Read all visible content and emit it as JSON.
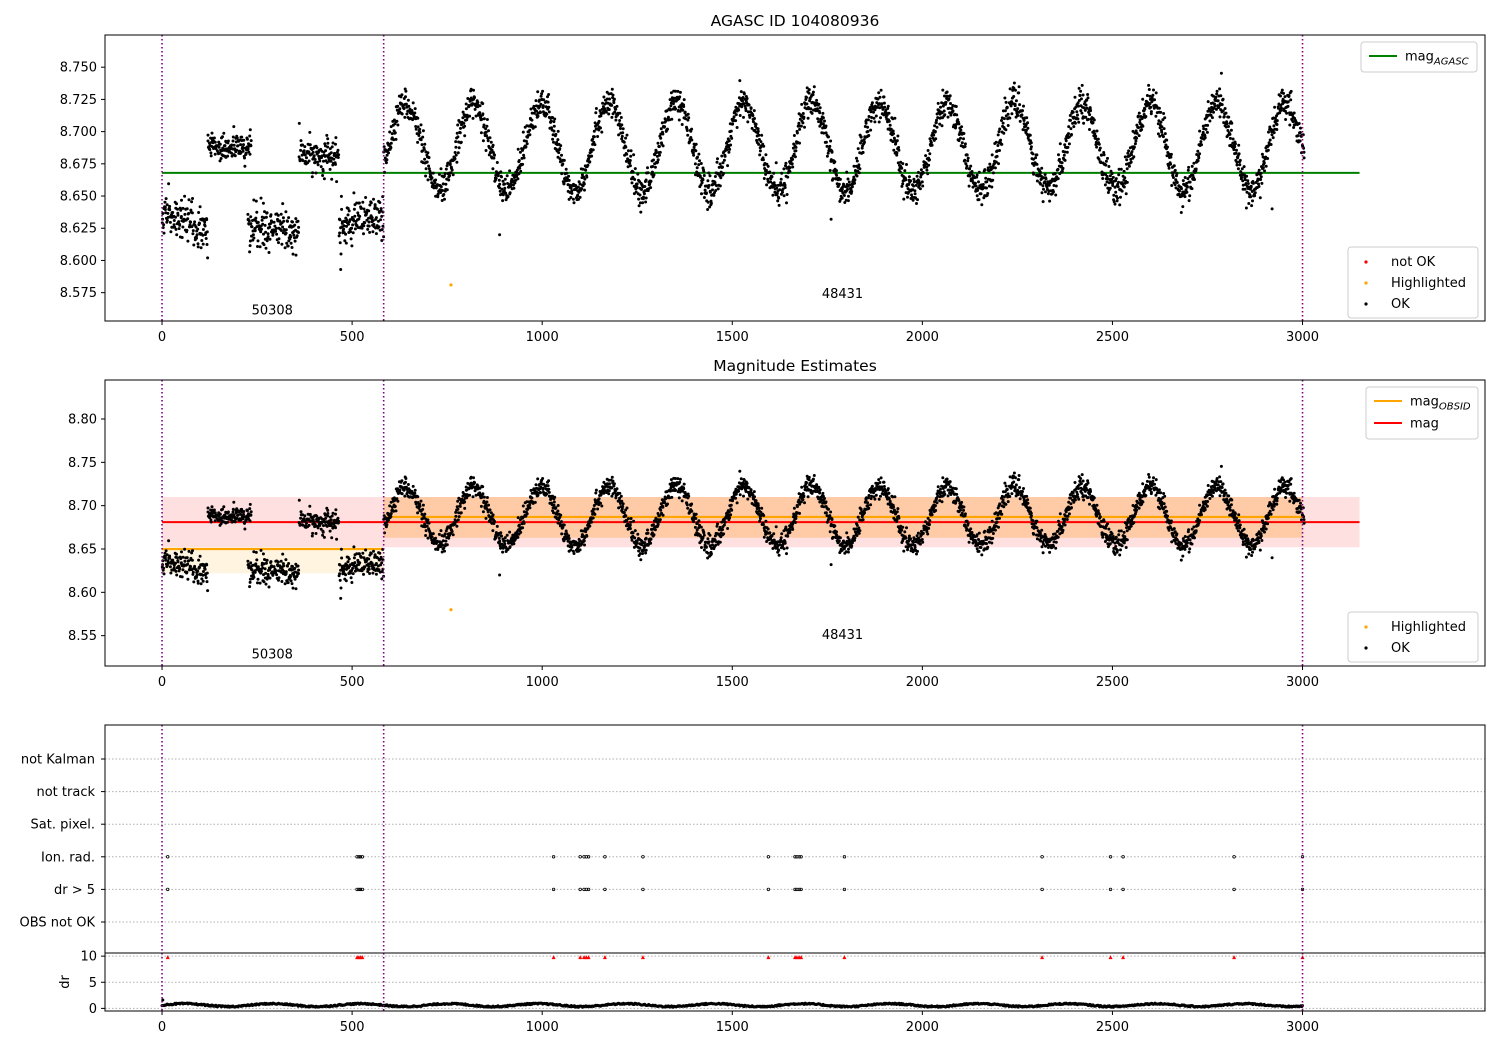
{
  "chart_data": [
    {
      "type": "scatter",
      "title": "AGASC ID 104080936",
      "xlim": [
        -150,
        3480
      ],
      "ylim": [
        8.553,
        8.775
      ],
      "x_ticks": [
        0,
        500,
        1000,
        1500,
        2000,
        2500,
        3000
      ],
      "y_ticks": [
        "8.575",
        "8.600",
        "8.625",
        "8.650",
        "8.675",
        "8.700",
        "8.725",
        "8.750"
      ],
      "obsid_boundaries": [
        0,
        583,
        3000
      ],
      "obsid_labels": [
        {
          "text": "50308",
          "x": 290,
          "y": 8.561
        },
        {
          "text": "48431",
          "x": 1790,
          "y": 8.574
        }
      ],
      "lines": [
        {
          "name": "mag_AGASC",
          "y": 8.668,
          "x_range": [
            0,
            3150
          ],
          "color": "#008000"
        }
      ],
      "legend_upper": [
        {
          "label": "mag",
          "subscript": "AGASC",
          "color": "#008000",
          "marker": "line"
        }
      ],
      "legend_lower": [
        {
          "label": "not OK",
          "color": "#ff0000",
          "marker": "dot"
        },
        {
          "label": "Highlighted",
          "color": "#ffa500",
          "marker": "dot"
        },
        {
          "label": "OK",
          "color": "#000000",
          "marker": "dot"
        }
      ],
      "series": [
        {
          "name": "OK",
          "color": "#000000",
          "description": "per-observation magnitude points, ~3000 samples",
          "segments": [
            {
              "x": [
                0,
                120
              ],
              "center": 8.638,
              "trend": -0.016,
              "noise": 0.008
            },
            {
              "x": [
                120,
                235
              ],
              "center": 8.688,
              "trend": 0.0,
              "noise": 0.006
            },
            {
              "x": [
                225,
                360
              ],
              "center": 8.628,
              "trend": -0.008,
              "noise": 0.008
            },
            {
              "x": [
                360,
                465
              ],
              "center": 8.683,
              "trend": -0.004,
              "noise": 0.007
            },
            {
              "x": [
                465,
                583
              ],
              "center": 8.626,
              "trend": 0.008,
              "noise": 0.008
            },
            {
              "x": [
                583,
                3005
              ],
              "center": 8.688,
              "amplitude": 0.034,
              "period": 178,
              "phase_peak_x": 640,
              "noise": 0.006
            }
          ]
        },
        {
          "name": "Highlighted",
          "color": "#ffa500",
          "points": [
            {
              "x": 760,
              "y": 8.581
            }
          ]
        }
      ]
    },
    {
      "type": "scatter",
      "title": "Magnitude Estimates",
      "xlim": [
        -150,
        3480
      ],
      "ylim": [
        8.515,
        8.845
      ],
      "x_ticks": [
        0,
        500,
        1000,
        1500,
        2000,
        2500,
        3000
      ],
      "y_ticks": [
        "8.55",
        "8.60",
        "8.65",
        "8.70",
        "8.75",
        "8.80"
      ],
      "obsid_boundaries": [
        0,
        583,
        3000
      ],
      "obsid_labels": [
        {
          "text": "50308",
          "x": 290,
          "y": 8.528
        },
        {
          "text": "48431",
          "x": 1790,
          "y": 8.551
        }
      ],
      "lines": [
        {
          "name": "mag_OBSID",
          "color": "#ffa500",
          "segments": [
            {
              "x": [
                0,
                583
              ],
              "y": 8.65
            },
            {
              "x": [
                583,
                3000
              ],
              "y": 8.687
            }
          ]
        },
        {
          "name": "mag",
          "color": "#ff0000",
          "y": 8.681,
          "x_range": [
            0,
            3150
          ]
        }
      ],
      "bands": [
        {
          "color": "#ffa500",
          "opacity": 0.12,
          "x": [
            0,
            583
          ],
          "y": [
            8.622,
            8.65
          ]
        },
        {
          "color": "#ffa500",
          "opacity": 0.25,
          "x": [
            583,
            3000
          ],
          "y": [
            8.663,
            8.71
          ]
        },
        {
          "color": "#ff0000",
          "opacity": 0.12,
          "x": [
            0,
            3150
          ],
          "y": [
            8.652,
            8.71
          ]
        }
      ],
      "legend_upper": [
        {
          "label": "mag",
          "subscript": "OBSID",
          "color": "#ffa500",
          "marker": "line"
        },
        {
          "label": "mag",
          "subscript": "",
          "color": "#ff0000",
          "marker": "line"
        }
      ],
      "legend_lower": [
        {
          "label": "Highlighted",
          "color": "#ffa500",
          "marker": "dot"
        },
        {
          "label": "OK",
          "color": "#000000",
          "marker": "dot"
        }
      ],
      "series": [
        {
          "name": "OK",
          "color": "#000000",
          "description": "same magnitude samples as upper panel"
        },
        {
          "name": "Highlighted",
          "color": "#ffa500",
          "points": [
            {
              "x": 760,
              "y": 8.58
            }
          ]
        }
      ]
    },
    {
      "type": "scatter",
      "title": "",
      "xlim": [
        -150,
        3480
      ],
      "category_axis": [
        "not Kalman",
        "not track",
        "Sat. pixel.",
        "Ion. rad.",
        "dr > 5",
        "OBS not OK"
      ],
      "flag_rows": [
        {
          "row": "Ion. rad.",
          "x": [
            15,
            513,
            518,
            522,
            527,
            1030,
            1100,
            1110,
            1116,
            1122,
            1165,
            1265,
            1595,
            1665,
            1670,
            1676,
            1681,
            1795,
            2315,
            2495,
            2528,
            2820,
            3000
          ]
        },
        {
          "row": "dr > 5",
          "x": [
            15,
            513,
            518,
            522,
            527,
            1030,
            1100,
            1110,
            1116,
            1122,
            1165,
            1265,
            1595,
            1665,
            1670,
            1676,
            1681,
            1795,
            2315,
            2495,
            2528,
            2820,
            3000
          ]
        }
      ],
      "obsid_boundaries": [
        0,
        583,
        3000
      ]
    },
    {
      "type": "scatter",
      "title": "",
      "ylabel": "dr",
      "xlim": [
        -150,
        3480
      ],
      "ylim": [
        -0.5,
        10.6
      ],
      "x_ticks": [
        0,
        500,
        1000,
        1500,
        2000,
        2500,
        3000
      ],
      "y_ticks": [
        "0",
        "5",
        "10"
      ],
      "obsid_boundaries": [
        0,
        583,
        3000
      ],
      "series": [
        {
          "name": "dr",
          "color": "#000000",
          "description": "dr values near 0-1 for all samples",
          "range": [
            0.1,
            1.2
          ]
        },
        {
          "name": "dr > 5 (clipped)",
          "color": "#ff0000",
          "marker": "triangle",
          "y": 9.8,
          "x": [
            15,
            513,
            518,
            522,
            527,
            1030,
            1100,
            1110,
            1116,
            1122,
            1165,
            1265,
            1595,
            1665,
            1670,
            1676,
            1681,
            1795,
            2315,
            2495,
            2528,
            2820,
            3000
          ]
        }
      ]
    }
  ]
}
